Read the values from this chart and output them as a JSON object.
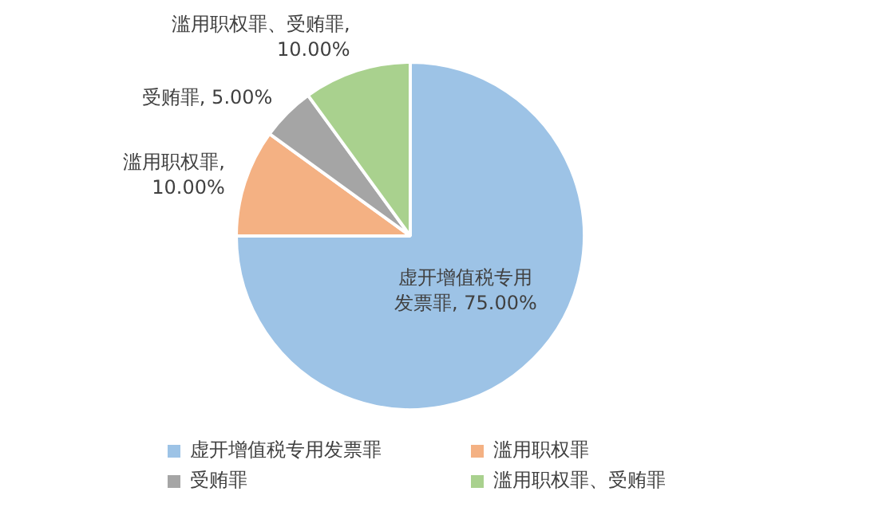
{
  "chart_data": {
    "type": "pie",
    "categories": [
      "虚开增值税专用发票罪",
      "滥用职权罪",
      "受贿罪",
      "滥用职权罪、受贿罪"
    ],
    "values": [
      75,
      10,
      5,
      10
    ],
    "colors": [
      "#9dc3e6",
      "#f4b183",
      "#a5a5a5",
      "#a9d18e"
    ],
    "value_labels": [
      "虚开增值税专用发票罪, 75.00%",
      "滥用职权罪, 10.00%",
      "受贿罪, 5.00%",
      "滥用职权罪、受贿罪, 10.00%"
    ],
    "legend": "bottom"
  }
}
